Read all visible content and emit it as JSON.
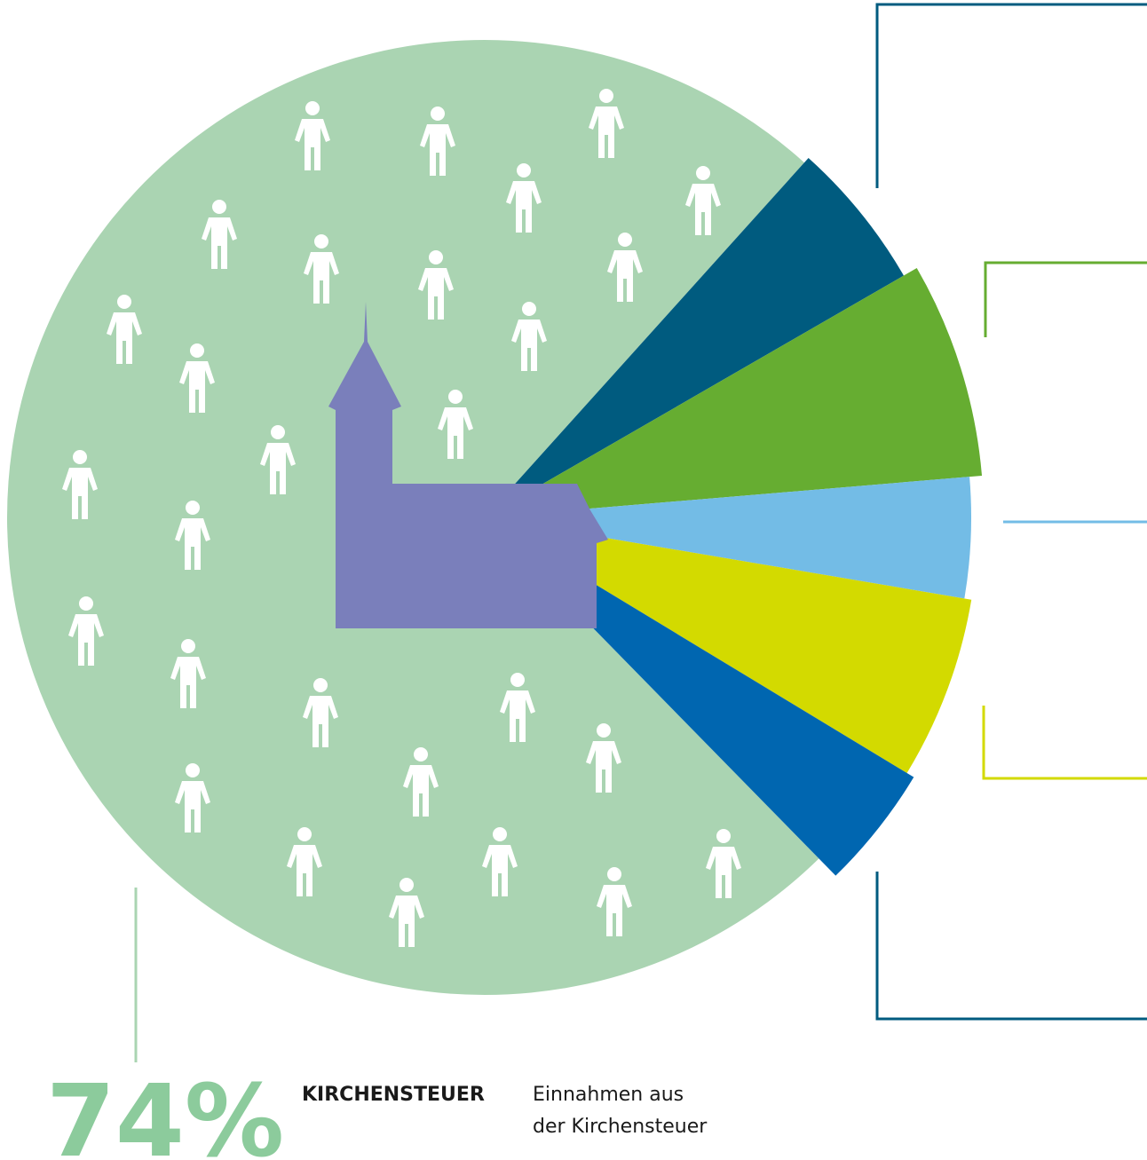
{
  "chart_data": {
    "type": "pie",
    "categories": [
      "KIRCHENSTEUER",
      null,
      null,
      null,
      null,
      null
    ],
    "values": [
      74,
      5,
      7,
      4,
      6,
      4
    ],
    "value_labels": [
      "74%",
      null,
      null,
      null,
      null,
      null
    ],
    "colors": [
      "#aad4b2",
      "#005b7f",
      "#66ad31",
      "#73bce6",
      "#d3da00",
      "#0066b0"
    ],
    "description": [
      "Einnahmen aus",
      "der Kirchensteuer"
    ]
  }
}
